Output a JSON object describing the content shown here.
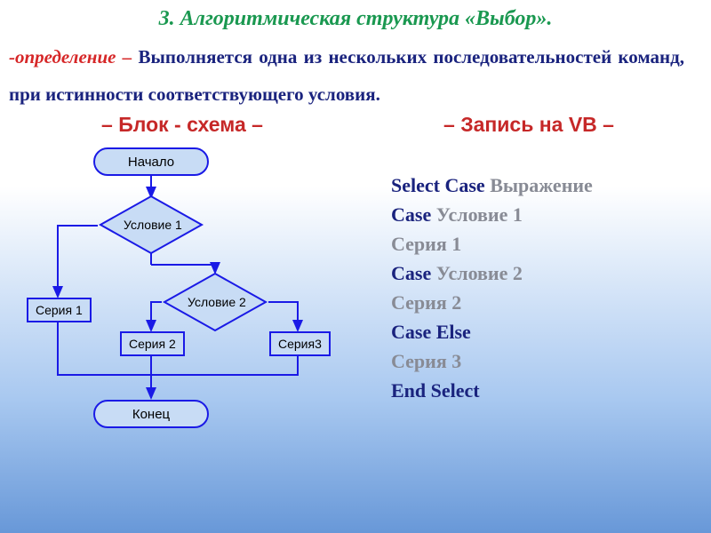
{
  "colors": {
    "title": "#1a9850",
    "def_prefix": "#d62728",
    "def_body": "#1a237e",
    "col_header": "#c62828",
    "flow_outline": "#1a1ae6",
    "flow_fill": "#c8dcf5",
    "flow_text": "#000000",
    "code_keyword": "#1a237e",
    "code_var": "#888b95"
  },
  "title": "3. Алгоритмическая структура «Выбор».",
  "definition": {
    "prefix": "-определение –",
    "body": " Выполняется одна из нескольких последовательностей команд, при истинности соответствующего условия."
  },
  "headers": {
    "left": "– Блок - схема –",
    "right": "– Запись на VB –"
  },
  "flowchart": {
    "start": "Начало",
    "cond1": "Условие 1",
    "cond2": "Условие 2",
    "s1": "Серия 1",
    "s2": "Серия 2",
    "s3": "Серия3",
    "end": "Конец",
    "stroke_width": 2,
    "arrow_size": 6
  },
  "code": [
    [
      {
        "t": "Select Case ",
        "c": "keyword"
      },
      {
        "t": "Выражение",
        "c": "var"
      }
    ],
    [
      {
        "t": "Case ",
        "c": "keyword"
      },
      {
        "t": "Условие 1",
        "c": "var"
      }
    ],
    [
      {
        "t": "Серия 1",
        "c": "var"
      }
    ],
    [
      {
        "t": "Case ",
        "c": "keyword"
      },
      {
        "t": "Условие 2",
        "c": "var"
      }
    ],
    [
      {
        "t": "Серия 2",
        "c": "var"
      }
    ],
    [
      {
        "t": "Case Else",
        "c": "keyword"
      }
    ],
    [
      {
        "t": "Серия 3",
        "c": "var"
      }
    ],
    [
      {
        "t": "End Select",
        "c": "keyword"
      }
    ]
  ]
}
